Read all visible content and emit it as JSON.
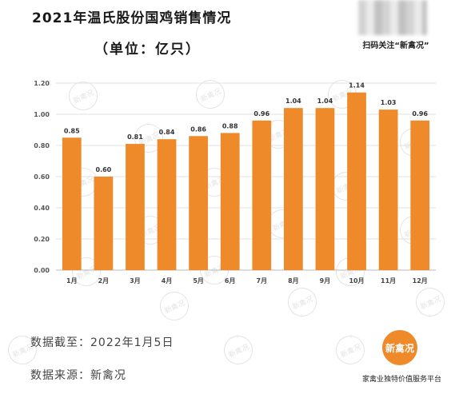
{
  "title": "2021年温氏股份国鸡销售情况",
  "subtitle": "（单位：亿只）",
  "qr_caption": "扫码关注“新禽况”",
  "chart_data": {
    "type": "bar",
    "title": "2021年温氏股份国鸡销售情况",
    "subtitle": "（单位：亿只）",
    "categories": [
      "1月",
      "2月",
      "3月",
      "4月",
      "5月",
      "6月",
      "7月",
      "8月",
      "9月",
      "10月",
      "11月",
      "12月"
    ],
    "values": [
      0.85,
      0.6,
      0.81,
      0.84,
      0.86,
      0.88,
      0.96,
      1.04,
      1.04,
      1.14,
      1.03,
      0.96
    ],
    "value_labels": [
      "0.85",
      "0.60",
      "0.81",
      "0.84",
      "0.86",
      "0.88",
      "0.96",
      "1.04",
      "1.04",
      "1.14",
      "1.03",
      "0.96"
    ],
    "ylim": [
      0,
      1.2
    ],
    "yticks": [
      "0.00",
      "0.20",
      "0.40",
      "0.60",
      "0.80",
      "1.00",
      "1.20"
    ],
    "grid": true,
    "bar_color": "#ee8a2a"
  },
  "footer": {
    "date_line": "数据截至：2022年1月5日",
    "source_line": "数据来源：新禽况",
    "logo_text": "新禽况",
    "tagline": "家禽业独特价值服务平台"
  },
  "watermark_text": "新禽况"
}
